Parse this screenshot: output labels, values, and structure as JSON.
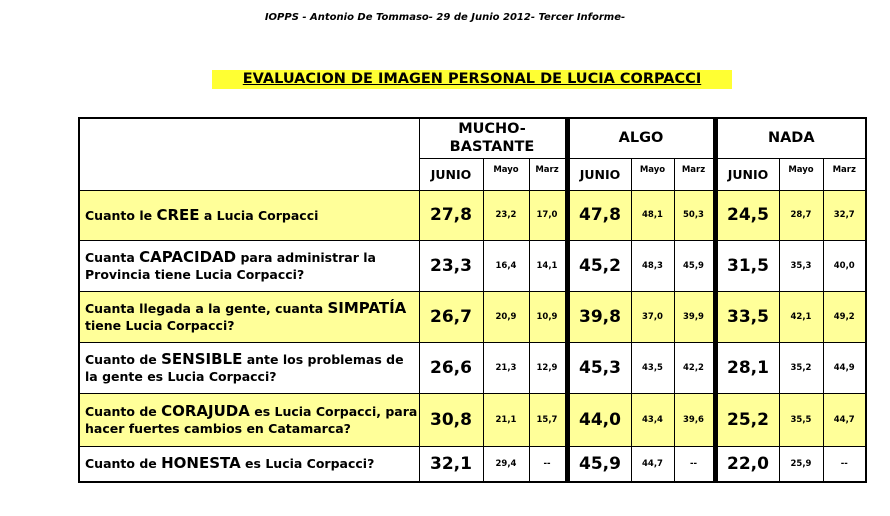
{
  "header": "IOPPS -  Antonio De Tommaso- 29 de Junio 2012- Tercer Informe-",
  "title": "EVALUACION DE IMAGEN PERSONAL DE LUCIA CORPACCI",
  "groups": [
    "MUCHO-BASTANTE",
    "ALGO",
    "NADA"
  ],
  "subheaders": [
    "JUNIO",
    "Mayo",
    "Marz"
  ],
  "rows": [
    {
      "pre": "Cuanto le ",
      "key": "CREE",
      "post": " a Lucia Corpacci",
      "values": [
        "27,8",
        "23,2",
        "17,0",
        "47,8",
        "48,1",
        "50,3",
        "24,5",
        "28,7",
        "32,7"
      ]
    },
    {
      "pre": "Cuanta ",
      "key": "CAPACIDAD",
      "post": " para administrar la Provincia tiene Lucia Corpacci?",
      "values": [
        "23,3",
        "16,4",
        "14,1",
        "45,2",
        "48,3",
        "45,9",
        "31,5",
        "35,3",
        "40,0"
      ]
    },
    {
      "pre": "Cuanta llegada a la gente, cuanta ",
      "key": "SIMPATÍA",
      "post": " tiene Lucia Corpacci?",
      "values": [
        "26,7",
        "20,9",
        "10,9",
        "39,8",
        "37,0",
        "39,9",
        "33,5",
        "42,1",
        "49,2"
      ]
    },
    {
      "pre": "Cuanto de ",
      "key": "SENSIBLE",
      "post": " ante los problemas de la gente es Lucia Corpacci?",
      "values": [
        "26,6",
        "21,3",
        "12,9",
        "45,3",
        "43,5",
        "42,2",
        "28,1",
        "35,2",
        "44,9"
      ]
    },
    {
      "pre": "Cuanto de ",
      "key": "CORAJUDA",
      "post": " es Lucia Corpacci, para hacer fuertes cambios en Catamarca?",
      "values": [
        "30,8",
        "21,1",
        "15,7",
        "44,0",
        "43,4",
        "39,6",
        "25,2",
        "35,5",
        "44,7"
      ]
    },
    {
      "pre": "Cuanto de ",
      "key": "HONESTA",
      "post": " es Lucia Corpacci?",
      "values": [
        "32,1",
        "29,4",
        "--",
        "45,9",
        "44,7",
        "--",
        "22,0",
        "25,9",
        "--"
      ]
    }
  ],
  "colors": {
    "highlight": "#ffff99",
    "title_bg": "#ffff33"
  }
}
